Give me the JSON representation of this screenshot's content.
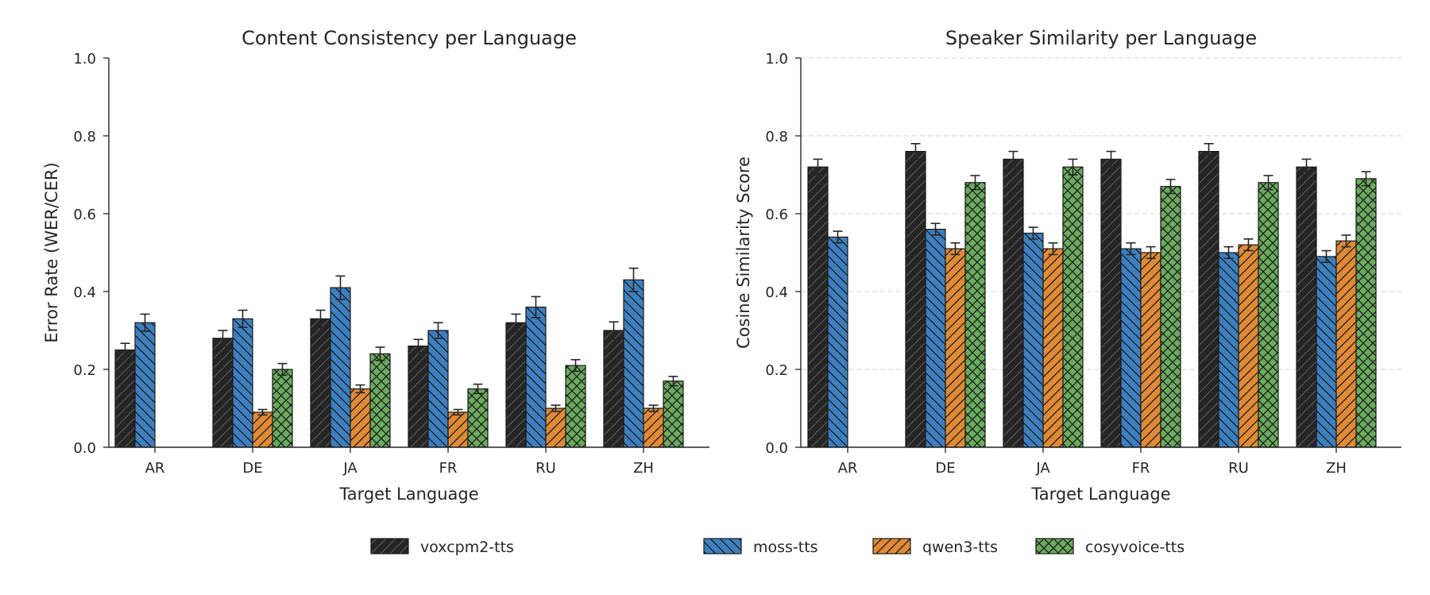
{
  "colors": {
    "voxcpm2-tts": "#262626",
    "moss-tts": "#3d7fbf",
    "qwen3-tts": "#e08a35",
    "cosyvoice-tts": "#6aab5e",
    "errorbar": "#262626",
    "gridline": "#d6d6d6"
  },
  "legend": {
    "placement": "bottom-center",
    "entries": [
      "voxcpm2-tts",
      "moss-tts",
      "qwen3-tts",
      "cosyvoice-tts"
    ]
  },
  "chart_data": [
    {
      "type": "bar",
      "title": "Content Consistency per Language",
      "xlabel": "Target Language",
      "ylabel": "Error Rate (WER/CER)",
      "ylim": [
        0,
        1.0
      ],
      "yticks": [
        "0.0",
        "0.2",
        "0.4",
        "0.6",
        "0.8",
        "1.0"
      ],
      "grid": false,
      "categories": [
        "AR",
        "DE",
        "JA",
        "FR",
        "RU",
        "ZH"
      ],
      "series": [
        {
          "name": "voxcpm2-tts",
          "values": [
            0.25,
            0.28,
            0.33,
            0.26,
            0.32,
            0.3
          ],
          "errors": [
            0.017,
            0.02,
            0.022,
            0.017,
            0.022,
            0.022
          ]
        },
        {
          "name": "moss-tts",
          "values": [
            0.32,
            0.33,
            0.41,
            0.3,
            0.36,
            0.43
          ],
          "errors": [
            0.022,
            0.022,
            0.03,
            0.02,
            0.027,
            0.03
          ]
        },
        {
          "name": "qwen3-tts",
          "values": [
            null,
            0.09,
            0.15,
            0.09,
            0.1,
            0.1
          ],
          "errors": [
            null,
            0.007,
            0.01,
            0.007,
            0.008,
            0.008
          ]
        },
        {
          "name": "cosyvoice-tts",
          "values": [
            null,
            0.2,
            0.24,
            0.15,
            0.21,
            0.17
          ],
          "errors": [
            null,
            0.015,
            0.017,
            0.012,
            0.015,
            0.012
          ]
        }
      ]
    },
    {
      "type": "bar",
      "title": "Speaker Similarity per Language",
      "xlabel": "Target Language",
      "ylabel": "Cosine Similarity Score",
      "ylim": [
        0,
        1.0
      ],
      "yticks": [
        "0.0",
        "0.2",
        "0.4",
        "0.6",
        "0.8",
        "1.0"
      ],
      "grid": true,
      "categories": [
        "AR",
        "DE",
        "JA",
        "FR",
        "RU",
        "ZH"
      ],
      "series": [
        {
          "name": "voxcpm2-tts",
          "values": [
            0.72,
            0.76,
            0.74,
            0.74,
            0.76,
            0.72
          ],
          "errors": [
            0.02,
            0.02,
            0.02,
            0.02,
            0.02,
            0.02
          ]
        },
        {
          "name": "moss-tts",
          "values": [
            0.54,
            0.56,
            0.55,
            0.51,
            0.5,
            0.49
          ],
          "errors": [
            0.015,
            0.015,
            0.015,
            0.015,
            0.015,
            0.015
          ]
        },
        {
          "name": "qwen3-tts",
          "values": [
            null,
            0.51,
            0.51,
            0.5,
            0.52,
            0.53
          ],
          "errors": [
            null,
            0.015,
            0.015,
            0.015,
            0.015,
            0.015
          ]
        },
        {
          "name": "cosyvoice-tts",
          "values": [
            null,
            0.68,
            0.72,
            0.67,
            0.68,
            0.69
          ],
          "errors": [
            null,
            0.018,
            0.02,
            0.018,
            0.018,
            0.018
          ]
        }
      ]
    }
  ]
}
